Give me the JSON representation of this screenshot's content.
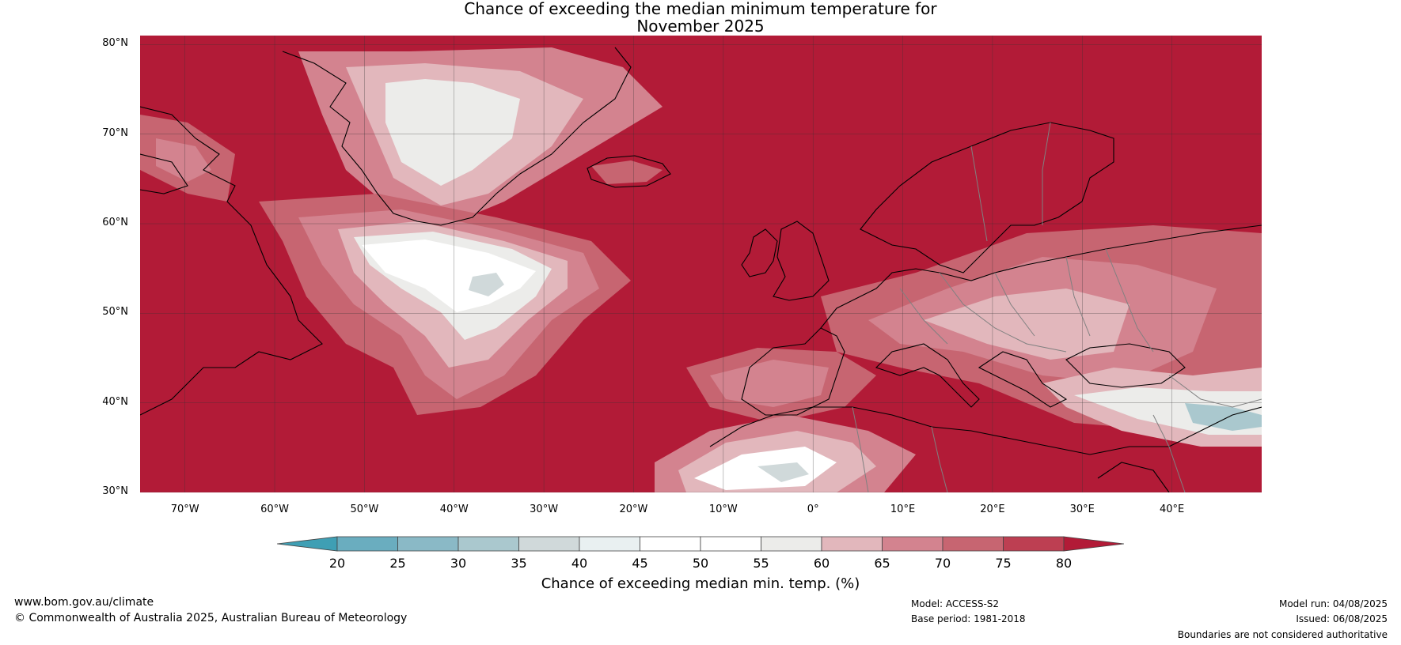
{
  "title": {
    "line1": "Chance of exceeding the median minimum temperature for",
    "line2": "November 2025"
  },
  "map": {
    "extent": {
      "lon": [
        -75,
        50
      ],
      "lat": [
        30,
        81
      ]
    },
    "lat_labels": [
      {
        "lat": 80,
        "text": "80°N"
      },
      {
        "lat": 70,
        "text": "70°N"
      },
      {
        "lat": 60,
        "text": "60°N"
      },
      {
        "lat": 50,
        "text": "50°N"
      },
      {
        "lat": 40,
        "text": "40°N"
      },
      {
        "lat": 30,
        "text": "30°N"
      }
    ],
    "lon_labels": [
      {
        "lon": -70,
        "text": "70°W"
      },
      {
        "lon": -60,
        "text": "60°W"
      },
      {
        "lon": -50,
        "text": "50°W"
      },
      {
        "lon": -40,
        "text": "40°W"
      },
      {
        "lon": -30,
        "text": "30°W"
      },
      {
        "lon": -20,
        "text": "20°W"
      },
      {
        "lon": -10,
        "text": "10°W"
      },
      {
        "lon": 0,
        "text": "0°"
      },
      {
        "lon": 10,
        "text": "10°E"
      },
      {
        "lon": 20,
        "text": "20°E"
      },
      {
        "lon": 30,
        "text": "30°E"
      },
      {
        "lon": 40,
        "text": "40°E"
      }
    ],
    "background_color": "#b21b37",
    "coast_color": "#000000",
    "border_color": "#808080"
  },
  "colorbar": {
    "ticks": [
      "20",
      "25",
      "30",
      "35",
      "40",
      "45",
      "50",
      "55",
      "60",
      "65",
      "70",
      "75",
      "80"
    ],
    "colors": [
      "#3f9fb4",
      "#6aadbf",
      "#8ab9c6",
      "#aac8ce",
      "#d0d9da",
      "#e9f0f1",
      "#ffffff",
      "#ffffff",
      "#ececea",
      "#e2b7bc",
      "#d3838f",
      "#c76571",
      "#bd3f52",
      "#b21b37"
    ],
    "label": "Chance of exceeding median min. temp. (%)"
  },
  "footer": {
    "website": "www.bom.gov.au/climate",
    "copyright": "© Commonwealth of Australia 2025, Australian Bureau of Meteorology",
    "model": "Model: ACCESS-S2",
    "base_period": "Base period: 1981-2018",
    "model_run": "Model run: 04/08/2025",
    "issued": "Issued: 06/08/2025",
    "boundaries": "Boundaries are not considered authoritative"
  }
}
